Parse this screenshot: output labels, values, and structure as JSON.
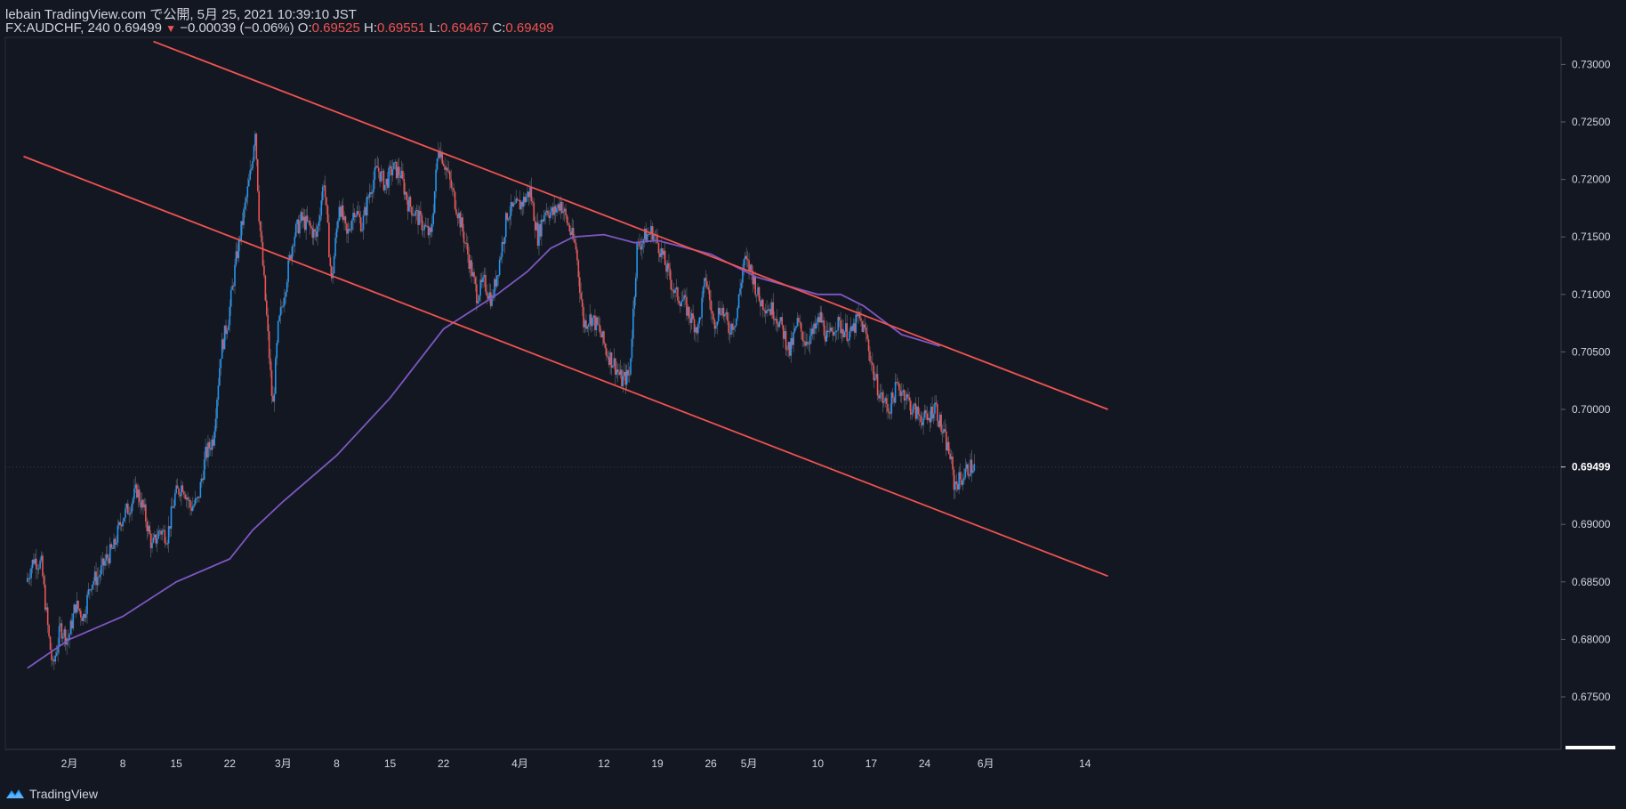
{
  "header": {
    "publish_line": "lebain TradingView.com で公開, 5月 25, 2021 10:39:10 JST",
    "symbol": "FX:AUDCHF, 240",
    "last": "0.69499",
    "change": "−0.00039 (−0.06%)",
    "o_label": "O:",
    "o_value": "0.69525",
    "h_label": "H:",
    "h_value": "0.69551",
    "l_label": "L:",
    "l_value": "0.69467",
    "c_label": "C:",
    "c_value": "0.69499",
    "down_arrow": "▼"
  },
  "footer": {
    "brand": "TradingView"
  },
  "colors": {
    "background": "#131722",
    "up": "#2196f3",
    "down": "#ef5350",
    "channel": "#f05350",
    "ma": "#7e57c2",
    "axis_text": "#d1d4dc",
    "border": "#2a2e39"
  },
  "chart_data": {
    "type": "candlestick",
    "symbol": "FX:AUDCHF",
    "interval": "240",
    "ylim": [
      0.6705,
      0.732
    ],
    "y_ticks": [
      "0.73000",
      "0.72500",
      "0.72000",
      "0.71500",
      "0.71000",
      "0.70500",
      "0.70000",
      "0.69500",
      "0.69000",
      "0.68500",
      "0.68000",
      "0.67500"
    ],
    "y_tick_values": [
      0.73,
      0.725,
      0.72,
      0.715,
      0.71,
      0.705,
      0.7,
      0.695,
      0.69,
      0.685,
      0.68,
      0.675
    ],
    "current_price_label": "0.69499",
    "current_price": 0.69499,
    "x_ticks": [
      {
        "label": "2月",
        "day": 0
      },
      {
        "label": "8",
        "day": 7
      },
      {
        "label": "15",
        "day": 14
      },
      {
        "label": "22",
        "day": 21
      },
      {
        "label": "3月",
        "day": 28
      },
      {
        "label": "8",
        "day": 35
      },
      {
        "label": "15",
        "day": 42
      },
      {
        "label": "22",
        "day": 49
      },
      {
        "label": "4月",
        "day": 59
      },
      {
        "label": "12",
        "day": 70
      },
      {
        "label": "19",
        "day": 77
      },
      {
        "label": "26",
        "day": 84
      },
      {
        "label": "5月",
        "day": 89
      },
      {
        "label": "10",
        "day": 98
      },
      {
        "label": "17",
        "day": 105
      },
      {
        "label": "24",
        "day": 112
      },
      {
        "label": "6月",
        "day": 120
      },
      {
        "label": "14",
        "day": 133
      }
    ],
    "price_path": [
      [
        -5.5,
        0.685
      ],
      [
        -4.5,
        0.687
      ],
      [
        -3.5,
        0.6865
      ],
      [
        -2.5,
        0.68
      ],
      [
        -2,
        0.6775
      ],
      [
        -1,
        0.681
      ],
      [
        0,
        0.68
      ],
      [
        1,
        0.683
      ],
      [
        2,
        0.682
      ],
      [
        3,
        0.685
      ],
      [
        4,
        0.6855
      ],
      [
        5,
        0.687
      ],
      [
        6,
        0.688
      ],
      [
        7,
        0.6905
      ],
      [
        8,
        0.6915
      ],
      [
        9,
        0.693
      ],
      [
        10,
        0.691
      ],
      [
        11,
        0.688
      ],
      [
        12,
        0.6895
      ],
      [
        13,
        0.689
      ],
      [
        14,
        0.6925
      ],
      [
        15,
        0.6935
      ],
      [
        16,
        0.6915
      ],
      [
        17,
        0.692
      ],
      [
        18,
        0.696
      ],
      [
        19,
        0.6975
      ],
      [
        20,
        0.705
      ],
      [
        21,
        0.708
      ],
      [
        22,
        0.713
      ],
      [
        23,
        0.717
      ],
      [
        24,
        0.721
      ],
      [
        24.5,
        0.7245
      ],
      [
        25,
        0.717
      ],
      [
        26,
        0.708
      ],
      [
        26.8,
        0.7
      ],
      [
        27.5,
        0.707
      ],
      [
        28.5,
        0.711
      ],
      [
        29.5,
        0.715
      ],
      [
        30.5,
        0.7165
      ],
      [
        31.5,
        0.716
      ],
      [
        32.5,
        0.715
      ],
      [
        33.5,
        0.72
      ],
      [
        34.5,
        0.711
      ],
      [
        35.5,
        0.718
      ],
      [
        36.5,
        0.715
      ],
      [
        37.5,
        0.7175
      ],
      [
        38.5,
        0.716
      ],
      [
        39.5,
        0.719
      ],
      [
        40.5,
        0.721
      ],
      [
        41.5,
        0.7195
      ],
      [
        42.5,
        0.721
      ],
      [
        43.5,
        0.7205
      ],
      [
        44.5,
        0.718
      ],
      [
        45.5,
        0.717
      ],
      [
        46.5,
        0.716
      ],
      [
        47.5,
        0.715
      ],
      [
        48.5,
        0.723
      ],
      [
        49.5,
        0.721
      ],
      [
        50.5,
        0.7185
      ],
      [
        51.5,
        0.716
      ],
      [
        52.5,
        0.713
      ],
      [
        53.5,
        0.71
      ],
      [
        54.5,
        0.711
      ],
      [
        55.5,
        0.7095
      ],
      [
        56.5,
        0.713
      ],
      [
        57.5,
        0.717
      ],
      [
        58.5,
        0.7175
      ],
      [
        59.5,
        0.718
      ],
      [
        60.5,
        0.719
      ],
      [
        61.5,
        0.715
      ],
      [
        62.5,
        0.7175
      ],
      [
        63.5,
        0.717
      ],
      [
        64.5,
        0.718
      ],
      [
        65.5,
        0.716
      ],
      [
        66.5,
        0.714
      ],
      [
        67.5,
        0.7075
      ],
      [
        68.5,
        0.708
      ],
      [
        69.5,
        0.707
      ],
      [
        70.5,
        0.705
      ],
      [
        71.5,
        0.704
      ],
      [
        72.5,
        0.7025
      ],
      [
        73.5,
        0.703
      ],
      [
        74.5,
        0.714
      ],
      [
        75.5,
        0.715
      ],
      [
        76.5,
        0.7155
      ],
      [
        77.5,
        0.714
      ],
      [
        78.5,
        0.712
      ],
      [
        79.5,
        0.71
      ],
      [
        80.5,
        0.7095
      ],
      [
        81.5,
        0.708
      ],
      [
        82.5,
        0.707
      ],
      [
        83.5,
        0.7115
      ],
      [
        84.5,
        0.7075
      ],
      [
        85.5,
        0.709
      ],
      [
        86.5,
        0.707
      ],
      [
        87.5,
        0.708
      ],
      [
        88.5,
        0.713
      ],
      [
        89.5,
        0.712
      ],
      [
        90.5,
        0.7095
      ],
      [
        91.5,
        0.709
      ],
      [
        92.5,
        0.7085
      ],
      [
        93.5,
        0.707
      ],
      [
        94.5,
        0.705
      ],
      [
        95.5,
        0.7075
      ],
      [
        96.5,
        0.706
      ],
      [
        97.5,
        0.7065
      ],
      [
        98.5,
        0.708
      ],
      [
        99.5,
        0.706
      ],
      [
        100.5,
        0.7075
      ],
      [
        101.5,
        0.707
      ],
      [
        102.5,
        0.7065
      ],
      [
        103.5,
        0.708
      ],
      [
        104.5,
        0.7065
      ],
      [
        105.5,
        0.703
      ],
      [
        106.5,
        0.701
      ],
      [
        107.5,
        0.7
      ],
      [
        108.5,
        0.702
      ],
      [
        109.5,
        0.7015
      ],
      [
        110.5,
        0.7
      ],
      [
        111.5,
        0.6995
      ],
      [
        112.5,
        0.699
      ],
      [
        113.5,
        0.7005
      ],
      [
        114.5,
        0.698
      ],
      [
        115.5,
        0.696
      ],
      [
        116.0,
        0.6935
      ],
      [
        117,
        0.694
      ],
      [
        118,
        0.695
      ],
      [
        118.5,
        0.69499
      ]
    ],
    "moving_average": [
      [
        -5.5,
        0.6775
      ],
      [
        0,
        0.68
      ],
      [
        7,
        0.682
      ],
      [
        14,
        0.685
      ],
      [
        21,
        0.687
      ],
      [
        24,
        0.6895
      ],
      [
        28,
        0.692
      ],
      [
        35,
        0.696
      ],
      [
        42,
        0.701
      ],
      [
        49,
        0.707
      ],
      [
        56,
        0.71
      ],
      [
        60,
        0.712
      ],
      [
        63,
        0.714
      ],
      [
        66,
        0.715
      ],
      [
        70,
        0.7152
      ],
      [
        74,
        0.7145
      ],
      [
        77,
        0.7147
      ],
      [
        84,
        0.7135
      ],
      [
        90,
        0.7115
      ],
      [
        98,
        0.71
      ],
      [
        101,
        0.71
      ],
      [
        104,
        0.709
      ],
      [
        109,
        0.7065
      ],
      [
        114,
        0.7055
      ]
    ],
    "channel_lines": [
      {
        "name": "upper",
        "points": [
          [
            11,
            0.732
          ],
          [
            136,
            0.7
          ]
        ]
      },
      {
        "name": "lower",
        "points": [
          [
            -6,
            0.722
          ],
          [
            136,
            0.6855
          ]
        ]
      }
    ]
  }
}
